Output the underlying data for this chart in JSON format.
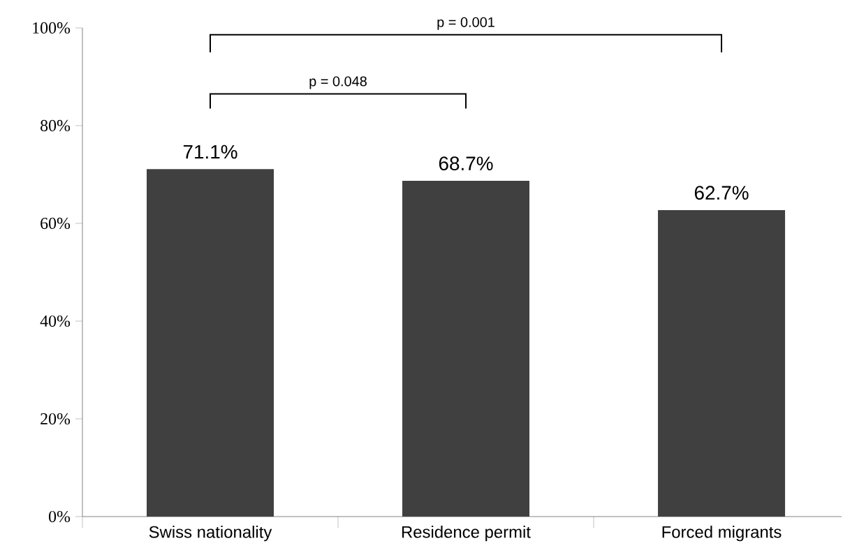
{
  "chart_data": {
    "type": "bar",
    "categories": [
      "Swiss nationality",
      "Residence permit",
      "Forced migrants"
    ],
    "values": [
      71.1,
      68.7,
      62.7
    ],
    "value_labels": [
      "71.1%",
      "68.7%",
      "62.7%"
    ],
    "color": "#404040",
    "ylim": [
      0,
      100
    ],
    "yticks": [
      {
        "value": 0,
        "label": "0%"
      },
      {
        "value": 20,
        "label": "20%"
      },
      {
        "value": 40,
        "label": "40%"
      },
      {
        "value": 60,
        "label": "60%"
      },
      {
        "value": 80,
        "label": "80%"
      },
      {
        "value": 100,
        "label": "100%"
      }
    ],
    "annotations": [
      "p = 0.048",
      "p = 0.001"
    ],
    "grid": false
  }
}
